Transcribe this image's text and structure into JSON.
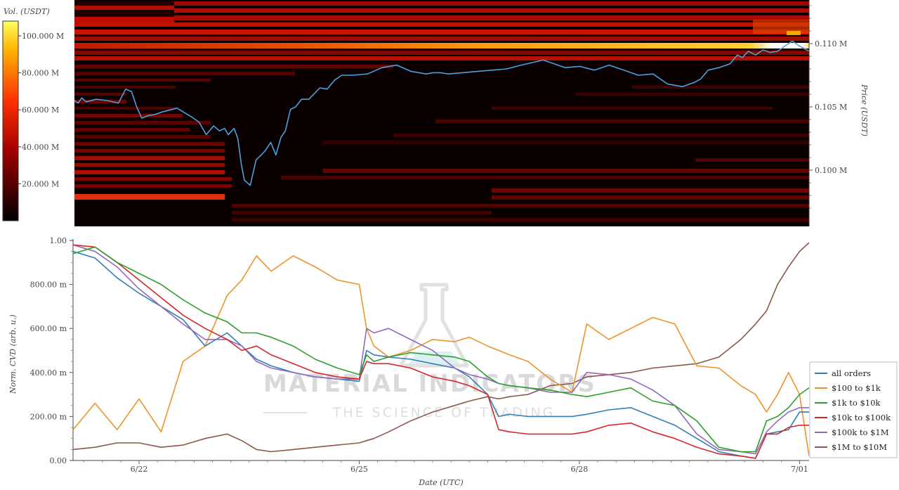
{
  "watermark": {
    "line1": "MATERIAL INDICATORS",
    "line2": "THE SCIENCE OF TRADING"
  },
  "chart_data": [
    {
      "type": "heatmap",
      "colorbar_label": "Vol. (USDT)",
      "colorbar_ticks": [
        "20.000 M",
        "40.000 M",
        "60.000 M",
        "80.000 M",
        "100.000 M"
      ],
      "colorbar_tick_values": [
        20,
        40,
        60,
        80,
        100
      ],
      "colorbar_range": [
        0,
        108
      ],
      "ylabel": "Price (USDT)",
      "y_ticks": [
        "0.100 M",
        "0.105 M",
        "0.110 M"
      ],
      "y_tick_values": [
        100000,
        105000,
        110000
      ],
      "ylim": [
        96000,
        114000
      ],
      "x_range_days": [
        -0.9,
        9.13
      ],
      "price_series_days": [
        -0.9,
        -0.85,
        -0.8,
        -0.74,
        -0.6,
        -0.45,
        -0.3,
        -0.2,
        -0.12,
        -0.05,
        0.02,
        0.1,
        0.2,
        0.3,
        0.5,
        0.7,
        0.8,
        0.9,
        1.0,
        1.08,
        1.15,
        1.2,
        1.28,
        1.33,
        1.38,
        1.42,
        1.5,
        1.58,
        1.65,
        1.7,
        1.78,
        1.85,
        1.92,
        1.98,
        2.05,
        2.12,
        2.2,
        2.3,
        2.45,
        2.55,
        2.65,
        2.75,
        2.9,
        3.1,
        3.3,
        3.5,
        3.7,
        3.9,
        4.0,
        4.1,
        4.2,
        4.4,
        4.6,
        4.8,
        5.0,
        5.2,
        5.5,
        5.8,
        6.0,
        6.2,
        6.4,
        6.6,
        6.8,
        7.0,
        7.2,
        7.4,
        7.55,
        7.65,
        7.75,
        7.9,
        8.05,
        8.15,
        8.22,
        8.3,
        8.4,
        8.5,
        8.6,
        8.7,
        8.8,
        8.9,
        9.0,
        9.13
      ],
      "price_series_usdt": [
        105500,
        105300,
        105700,
        105400,
        105600,
        105500,
        105300,
        106400,
        106200,
        105000,
        104100,
        104300,
        104400,
        104600,
        104900,
        104200,
        103800,
        102800,
        103500,
        103100,
        103300,
        102800,
        103300,
        102500,
        100400,
        99200,
        98800,
        100800,
        101200,
        101500,
        102200,
        101200,
        102600,
        103100,
        104800,
        105000,
        105600,
        105600,
        106500,
        106400,
        107100,
        107500,
        107500,
        107600,
        108100,
        108300,
        107800,
        107600,
        107700,
        107700,
        107600,
        107700,
        107800,
        107900,
        108000,
        108300,
        108700,
        108100,
        108200,
        107900,
        108300,
        107900,
        107500,
        107600,
        106800,
        106600,
        106900,
        107200,
        107900,
        108100,
        108400,
        109100,
        108900,
        109400,
        109100,
        109500,
        109300,
        109400,
        109800,
        110200,
        109800,
        109400
      ]
    },
    {
      "type": "line",
      "xlabel": "Date (UTC)",
      "ylabel": "Norm. CVD (arb. u.)",
      "x_tick_labels": [
        "6/22",
        "6/25",
        "6/28",
        "7/01"
      ],
      "x_tick_days": [
        0,
        3,
        6,
        9
      ],
      "xlim_days": [
        -0.9,
        9.13
      ],
      "y_tick_labels": [
        "0.00",
        "200.00 m",
        "400.00 m",
        "600.00 m",
        "800.00 m",
        "1.00"
      ],
      "y_tick_values": [
        0,
        0.2,
        0.4,
        0.6,
        0.8,
        1.0
      ],
      "ylim": [
        0,
        1.0
      ],
      "legend_position": "bottom-right",
      "x_days": [
        -0.9,
        -0.6,
        -0.3,
        0,
        0.3,
        0.6,
        0.9,
        1.2,
        1.4,
        1.6,
        1.8,
        2.1,
        2.4,
        2.7,
        3.0,
        3.1,
        3.2,
        3.4,
        3.7,
        4.0,
        4.3,
        4.5,
        4.75,
        4.9,
        5.05,
        5.3,
        5.6,
        5.9,
        6.1,
        6.4,
        6.7,
        7.0,
        7.3,
        7.6,
        7.9,
        8.2,
        8.4,
        8.55,
        8.7,
        8.85,
        9.0,
        9.13
      ],
      "series": [
        {
          "name": "all orders",
          "color": "#2f80b8",
          "values": [
            0.95,
            0.92,
            0.83,
            0.76,
            0.7,
            0.64,
            0.52,
            0.58,
            0.52,
            0.46,
            0.43,
            0.4,
            0.38,
            0.37,
            0.36,
            0.5,
            0.48,
            0.47,
            0.46,
            0.44,
            0.42,
            0.38,
            0.3,
            0.2,
            0.21,
            0.2,
            0.2,
            0.2,
            0.21,
            0.23,
            0.24,
            0.2,
            0.16,
            0.1,
            0.04,
            0.02,
            0.01,
            0.12,
            0.13,
            0.14,
            0.22,
            0.22
          ]
        },
        {
          "name": "$100 to $1k",
          "color": "#f0922a",
          "values": [
            0.14,
            0.26,
            0.14,
            0.28,
            0.13,
            0.45,
            0.52,
            0.75,
            0.82,
            0.93,
            0.86,
            0.93,
            0.88,
            0.82,
            0.8,
            0.6,
            0.52,
            0.47,
            0.5,
            0.55,
            0.54,
            0.56,
            0.52,
            0.5,
            0.48,
            0.45,
            0.37,
            0.31,
            0.62,
            0.55,
            0.6,
            0.65,
            0.62,
            0.43,
            0.42,
            0.34,
            0.3,
            0.22,
            0.3,
            0.4,
            0.3,
            0.02
          ]
        },
        {
          "name": "$1k to $10k",
          "color": "#2ca02c",
          "values": [
            0.94,
            0.97,
            0.9,
            0.85,
            0.8,
            0.73,
            0.67,
            0.63,
            0.58,
            0.58,
            0.56,
            0.52,
            0.46,
            0.42,
            0.39,
            0.48,
            0.45,
            0.47,
            0.49,
            0.48,
            0.47,
            0.45,
            0.38,
            0.35,
            0.34,
            0.33,
            0.32,
            0.3,
            0.29,
            0.31,
            0.33,
            0.27,
            0.25,
            0.18,
            0.06,
            0.04,
            0.04,
            0.18,
            0.2,
            0.24,
            0.3,
            0.33
          ]
        },
        {
          "name": "$10k to $100k",
          "color": "#d62728",
          "values": [
            0.98,
            0.97,
            0.9,
            0.82,
            0.74,
            0.66,
            0.6,
            0.55,
            0.5,
            0.52,
            0.48,
            0.44,
            0.4,
            0.38,
            0.37,
            0.45,
            0.44,
            0.44,
            0.42,
            0.38,
            0.36,
            0.34,
            0.3,
            0.14,
            0.13,
            0.12,
            0.12,
            0.12,
            0.13,
            0.16,
            0.17,
            0.13,
            0.1,
            0.06,
            0.03,
            0.02,
            0.01,
            0.12,
            0.12,
            0.15,
            0.16,
            0.16
          ]
        },
        {
          "name": "$100k to $1M",
          "color": "#9467bd",
          "values": [
            0.98,
            0.95,
            0.88,
            0.78,
            0.7,
            0.62,
            0.55,
            0.55,
            0.52,
            0.45,
            0.42,
            0.4,
            0.38,
            0.37,
            0.37,
            0.6,
            0.58,
            0.6,
            0.55,
            0.5,
            0.42,
            0.39,
            0.37,
            0.35,
            0.34,
            0.33,
            0.31,
            0.31,
            0.4,
            0.39,
            0.37,
            0.32,
            0.25,
            0.12,
            0.05,
            0.04,
            0.03,
            0.13,
            0.18,
            0.22,
            0.24,
            0.24
          ]
        },
        {
          "name": "$1M to $10M",
          "color": "#8c564b",
          "values": [
            0.05,
            0.06,
            0.08,
            0.08,
            0.06,
            0.07,
            0.1,
            0.12,
            0.09,
            0.05,
            0.04,
            0.05,
            0.06,
            0.07,
            0.08,
            0.09,
            0.1,
            0.13,
            0.18,
            0.22,
            0.25,
            0.27,
            0.29,
            0.28,
            0.29,
            0.3,
            0.34,
            0.35,
            0.38,
            0.39,
            0.4,
            0.42,
            0.43,
            0.44,
            0.47,
            0.55,
            0.62,
            0.68,
            0.8,
            0.88,
            0.95,
            0.99
          ]
        }
      ]
    }
  ]
}
